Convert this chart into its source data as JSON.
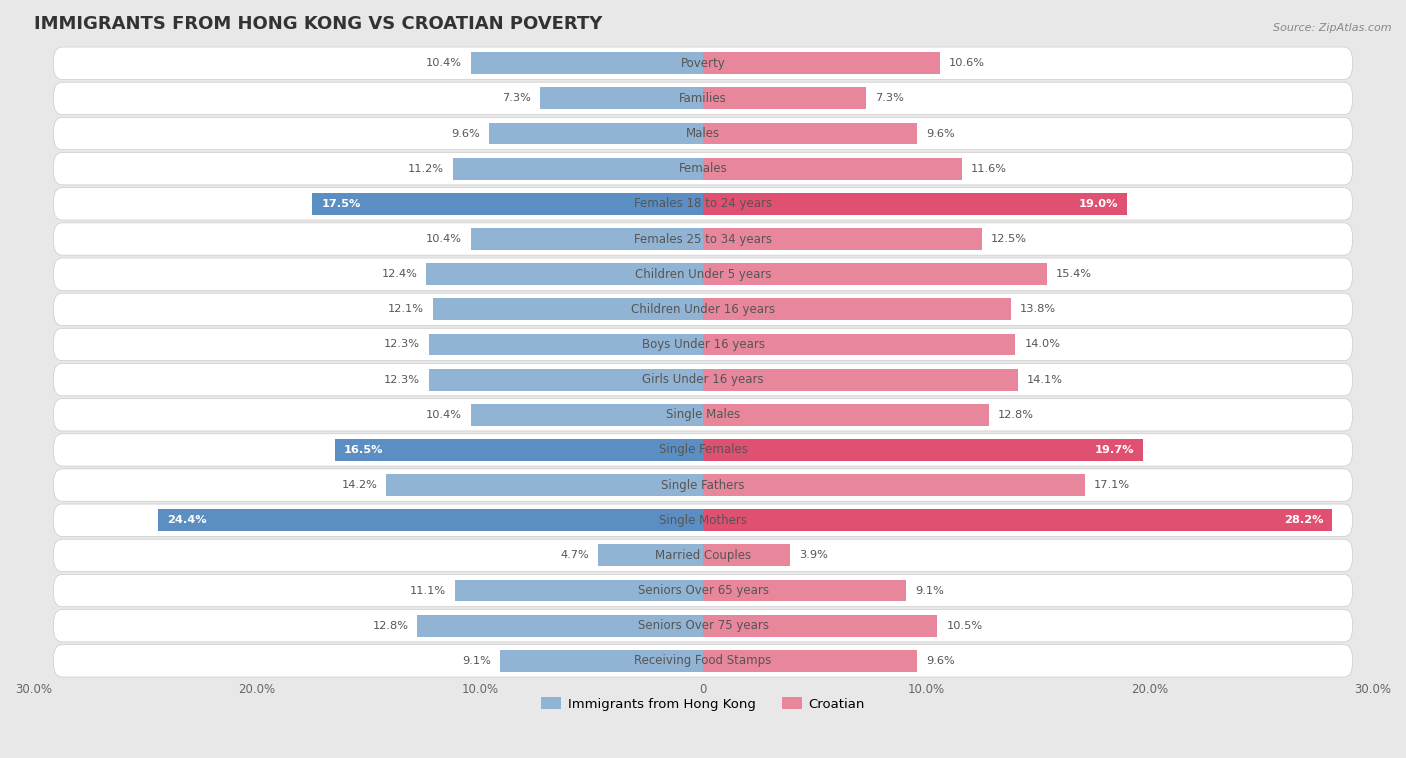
{
  "title": "IMMIGRANTS FROM HONG KONG VS CROATIAN POVERTY",
  "source": "Source: ZipAtlas.com",
  "categories": [
    "Poverty",
    "Families",
    "Males",
    "Females",
    "Females 18 to 24 years",
    "Females 25 to 34 years",
    "Children Under 5 years",
    "Children Under 16 years",
    "Boys Under 16 years",
    "Girls Under 16 years",
    "Single Males",
    "Single Females",
    "Single Fathers",
    "Single Mothers",
    "Married Couples",
    "Seniors Over 65 years",
    "Seniors Over 75 years",
    "Receiving Food Stamps"
  ],
  "hk_values": [
    10.4,
    7.3,
    9.6,
    11.2,
    17.5,
    10.4,
    12.4,
    12.1,
    12.3,
    12.3,
    10.4,
    16.5,
    14.2,
    24.4,
    4.7,
    11.1,
    12.8,
    9.1
  ],
  "cr_values": [
    10.6,
    7.3,
    9.6,
    11.6,
    19.0,
    12.5,
    15.4,
    13.8,
    14.0,
    14.1,
    12.8,
    19.7,
    17.1,
    28.2,
    3.9,
    9.1,
    10.5,
    9.6
  ],
  "hk_color": "#92b4d4",
  "cr_color": "#e8879c",
  "hk_highlight_indices": [
    4,
    11,
    13
  ],
  "cr_highlight_indices": [
    4,
    11,
    13
  ],
  "hk_highlight_color": "#5b8fc4",
  "cr_highlight_color": "#e05070",
  "hk_label": "Immigrants from Hong Kong",
  "cr_label": "Croatian",
  "xlim": 30.0,
  "bar_height": 0.62,
  "bg_color": "#e8e8e8",
  "row_color": "#ffffff",
  "label_fontsize": 8.5,
  "title_fontsize": 13,
  "value_fontsize": 8.2,
  "tick_fontsize": 8.5
}
